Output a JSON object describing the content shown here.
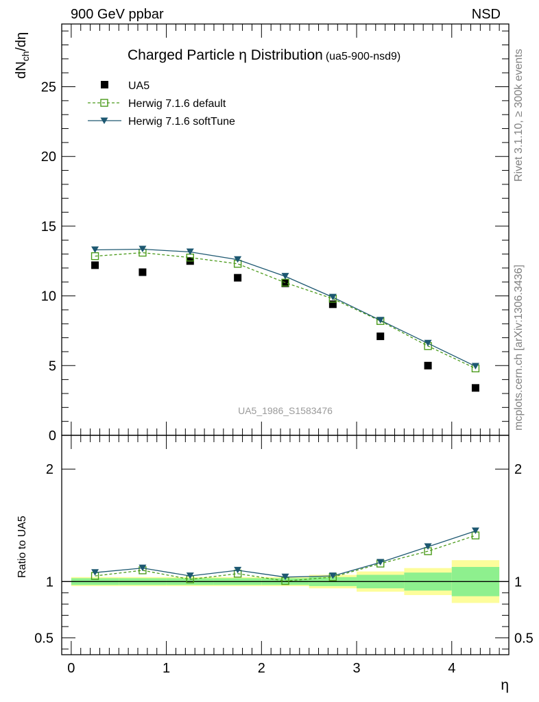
{
  "header": {
    "left": "900 GeV ppbar",
    "right": "NSD"
  },
  "side_labels": {
    "rivet": "Rivet 3.1.10, ≥ 300k events",
    "mcplots": "mcplots.cern.ch [arXiv:1306.3436]"
  },
  "chart_data": [
    {
      "type": "scatter",
      "panel": "main",
      "title": "Charged Particle η Distribution",
      "subtitle": "(ua5-900-nsd9)",
      "ylabel": "dN_ch/dη",
      "reference": "UA5_1986_S1583476",
      "xlim": [
        -0.1,
        4.6
      ],
      "ylim": [
        0,
        29.5
      ],
      "yticks": [
        0,
        5,
        10,
        15,
        20,
        25
      ],
      "yticklabels": [
        "0",
        "5",
        "10",
        "15",
        "20",
        "25"
      ],
      "x": [
        0.25,
        0.75,
        1.25,
        1.75,
        2.25,
        2.75,
        3.25,
        3.75,
        4.25
      ],
      "series": [
        {
          "name": "UA5",
          "style": "marker",
          "color": "#000000",
          "values": [
            12.2,
            11.7,
            12.5,
            11.3,
            10.9,
            9.4,
            7.1,
            5.0,
            3.4
          ]
        },
        {
          "name": "Herwig 7.1.6 default",
          "style": "dashed",
          "color": "#4a9a1a",
          "values": [
            12.85,
            13.1,
            12.75,
            12.3,
            10.95,
            9.8,
            8.2,
            6.4,
            4.8
          ]
        },
        {
          "name": "Herwig 7.1.6 softTune",
          "style": "solid",
          "color": "#1d5871",
          "values": [
            13.3,
            13.35,
            13.15,
            12.6,
            11.4,
            9.9,
            8.25,
            6.6,
            4.95
          ]
        }
      ]
    },
    {
      "type": "line",
      "panel": "ratio",
      "ylabel": "Ratio to UA5",
      "xlabel": "η",
      "xlim": [
        -0.1,
        4.6
      ],
      "ylim": [
        0.35,
        2.3
      ],
      "xticks": [
        0,
        1,
        2,
        3,
        4
      ],
      "xticklabels": [
        "0",
        "1",
        "2",
        "3",
        "4"
      ],
      "yticks": [
        0.5,
        1,
        2
      ],
      "yticklabels": [
        "0.5",
        "1",
        "2"
      ],
      "x": [
        0.25,
        0.75,
        1.25,
        1.75,
        2.25,
        2.75,
        3.25,
        3.75,
        4.25
      ],
      "bins": [
        [
          0,
          0.5
        ],
        [
          0.5,
          1
        ],
        [
          1,
          1.5
        ],
        [
          1.5,
          2
        ],
        [
          2,
          2.5
        ],
        [
          2.5,
          3
        ],
        [
          3,
          3.5
        ],
        [
          3.5,
          4
        ],
        [
          4,
          4.5
        ]
      ],
      "band_inner": [
        0.03,
        0.03,
        0.03,
        0.03,
        0.03,
        0.04,
        0.06,
        0.08,
        0.13
      ],
      "band_outer": [
        0.04,
        0.04,
        0.04,
        0.04,
        0.04,
        0.06,
        0.09,
        0.12,
        0.19
      ],
      "band_colors": {
        "inner": "#8ef08e",
        "outer": "#fdfd9b"
      },
      "series": [
        {
          "name": "Herwig 7.1.6 default",
          "style": "dashed",
          "color": "#4a9a1a",
          "values": [
            1.05,
            1.1,
            1.02,
            1.07,
            1.005,
            1.04,
            1.16,
            1.27,
            1.41
          ]
        },
        {
          "name": "Herwig 7.1.6 softTune",
          "style": "solid",
          "color": "#1d5871",
          "values": [
            1.08,
            1.12,
            1.05,
            1.1,
            1.04,
            1.05,
            1.17,
            1.31,
            1.45
          ]
        }
      ]
    }
  ]
}
